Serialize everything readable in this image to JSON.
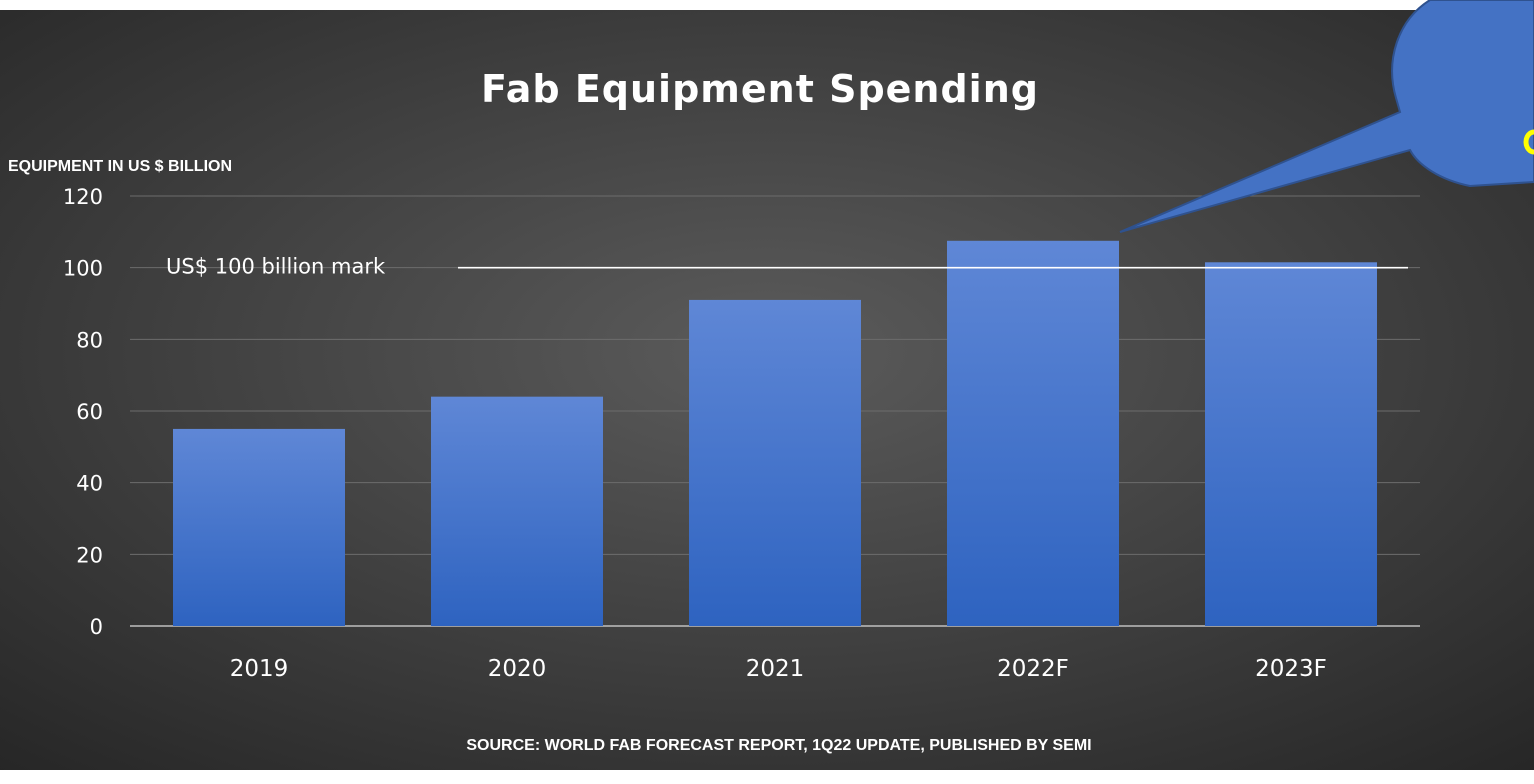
{
  "colors": {
    "background_center": "#5b5b5b",
    "background_edge": "#262626",
    "bar_top": "#5f87d6",
    "bar_bottom": "#2e63c0",
    "gridline": "#6c6c6c",
    "reference_line": "#ffffff",
    "callout_fill": "#4472c4",
    "callout_stroke": "#2f528f",
    "callout_text": "#ffff00",
    "text": "#ffffff"
  },
  "chart_data": {
    "type": "bar",
    "title": "Fab Equipment Spending",
    "ylabel": "EQUIPMENT IN US $ BILLION",
    "xlabel": "",
    "categories": [
      "2019",
      "2020",
      "2021",
      "2022F",
      "2023F"
    ],
    "values": [
      55,
      64,
      91,
      107.5,
      101.5
    ],
    "ylim": [
      0,
      120
    ],
    "yticks": [
      0,
      20,
      40,
      60,
      80,
      100,
      120
    ],
    "grid": true,
    "legend": "none",
    "reference_line": {
      "value": 100,
      "label": "US$ 100 billion mark"
    },
    "source": "SOURCE: WORLD FAB FORECAST REPORT, 1Q22 UPDATE, PUBLISHED BY SEMI"
  }
}
